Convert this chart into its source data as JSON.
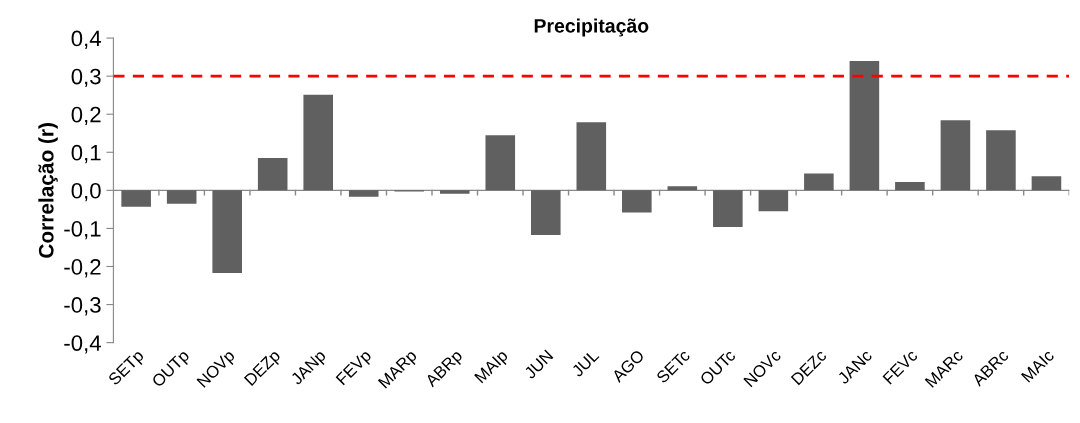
{
  "chart_data": {
    "type": "bar",
    "title": "Precipitação",
    "ylabel": "Correlação (r)",
    "categories": [
      "SETp",
      "OUTp",
      "NOVp",
      "DEZp",
      "JANp",
      "FEVp",
      "MARp",
      "ABRp",
      "MAIp",
      "JUN",
      "JUL",
      "AGO",
      "SETc",
      "OUTc",
      "NOVc",
      "DEZc",
      "JANc",
      "FEVc",
      "MARc",
      "ABRc",
      "MAIc"
    ],
    "values": [
      -0.043,
      -0.035,
      -0.217,
      0.085,
      0.251,
      -0.017,
      -0.003,
      -0.009,
      0.145,
      -0.117,
      0.179,
      -0.058,
      0.011,
      -0.096,
      -0.055,
      0.044,
      0.34,
      0.022,
      0.184,
      0.158,
      0.037
    ],
    "color": "#606060",
    "ylim": [
      -0.4,
      0.4
    ],
    "yticks": [
      {
        "value": -0.4,
        "label": "-0,4"
      },
      {
        "value": -0.3,
        "label": "-0,3"
      },
      {
        "value": -0.2,
        "label": "-0,2"
      },
      {
        "value": -0.1,
        "label": "-0,1"
      },
      {
        "value": 0.0,
        "label": "0,0"
      },
      {
        "value": 0.1,
        "label": "0,1"
      },
      {
        "value": 0.2,
        "label": "0,2"
      },
      {
        "value": 0.3,
        "label": "0,3"
      },
      {
        "value": 0.4,
        "label": "0,4"
      }
    ],
    "ref_lines": [
      {
        "axis": "y",
        "value": 0.3,
        "label": null,
        "color": "#ff0000",
        "line_style": "dashed"
      }
    ],
    "grid": false,
    "legend": false
  }
}
